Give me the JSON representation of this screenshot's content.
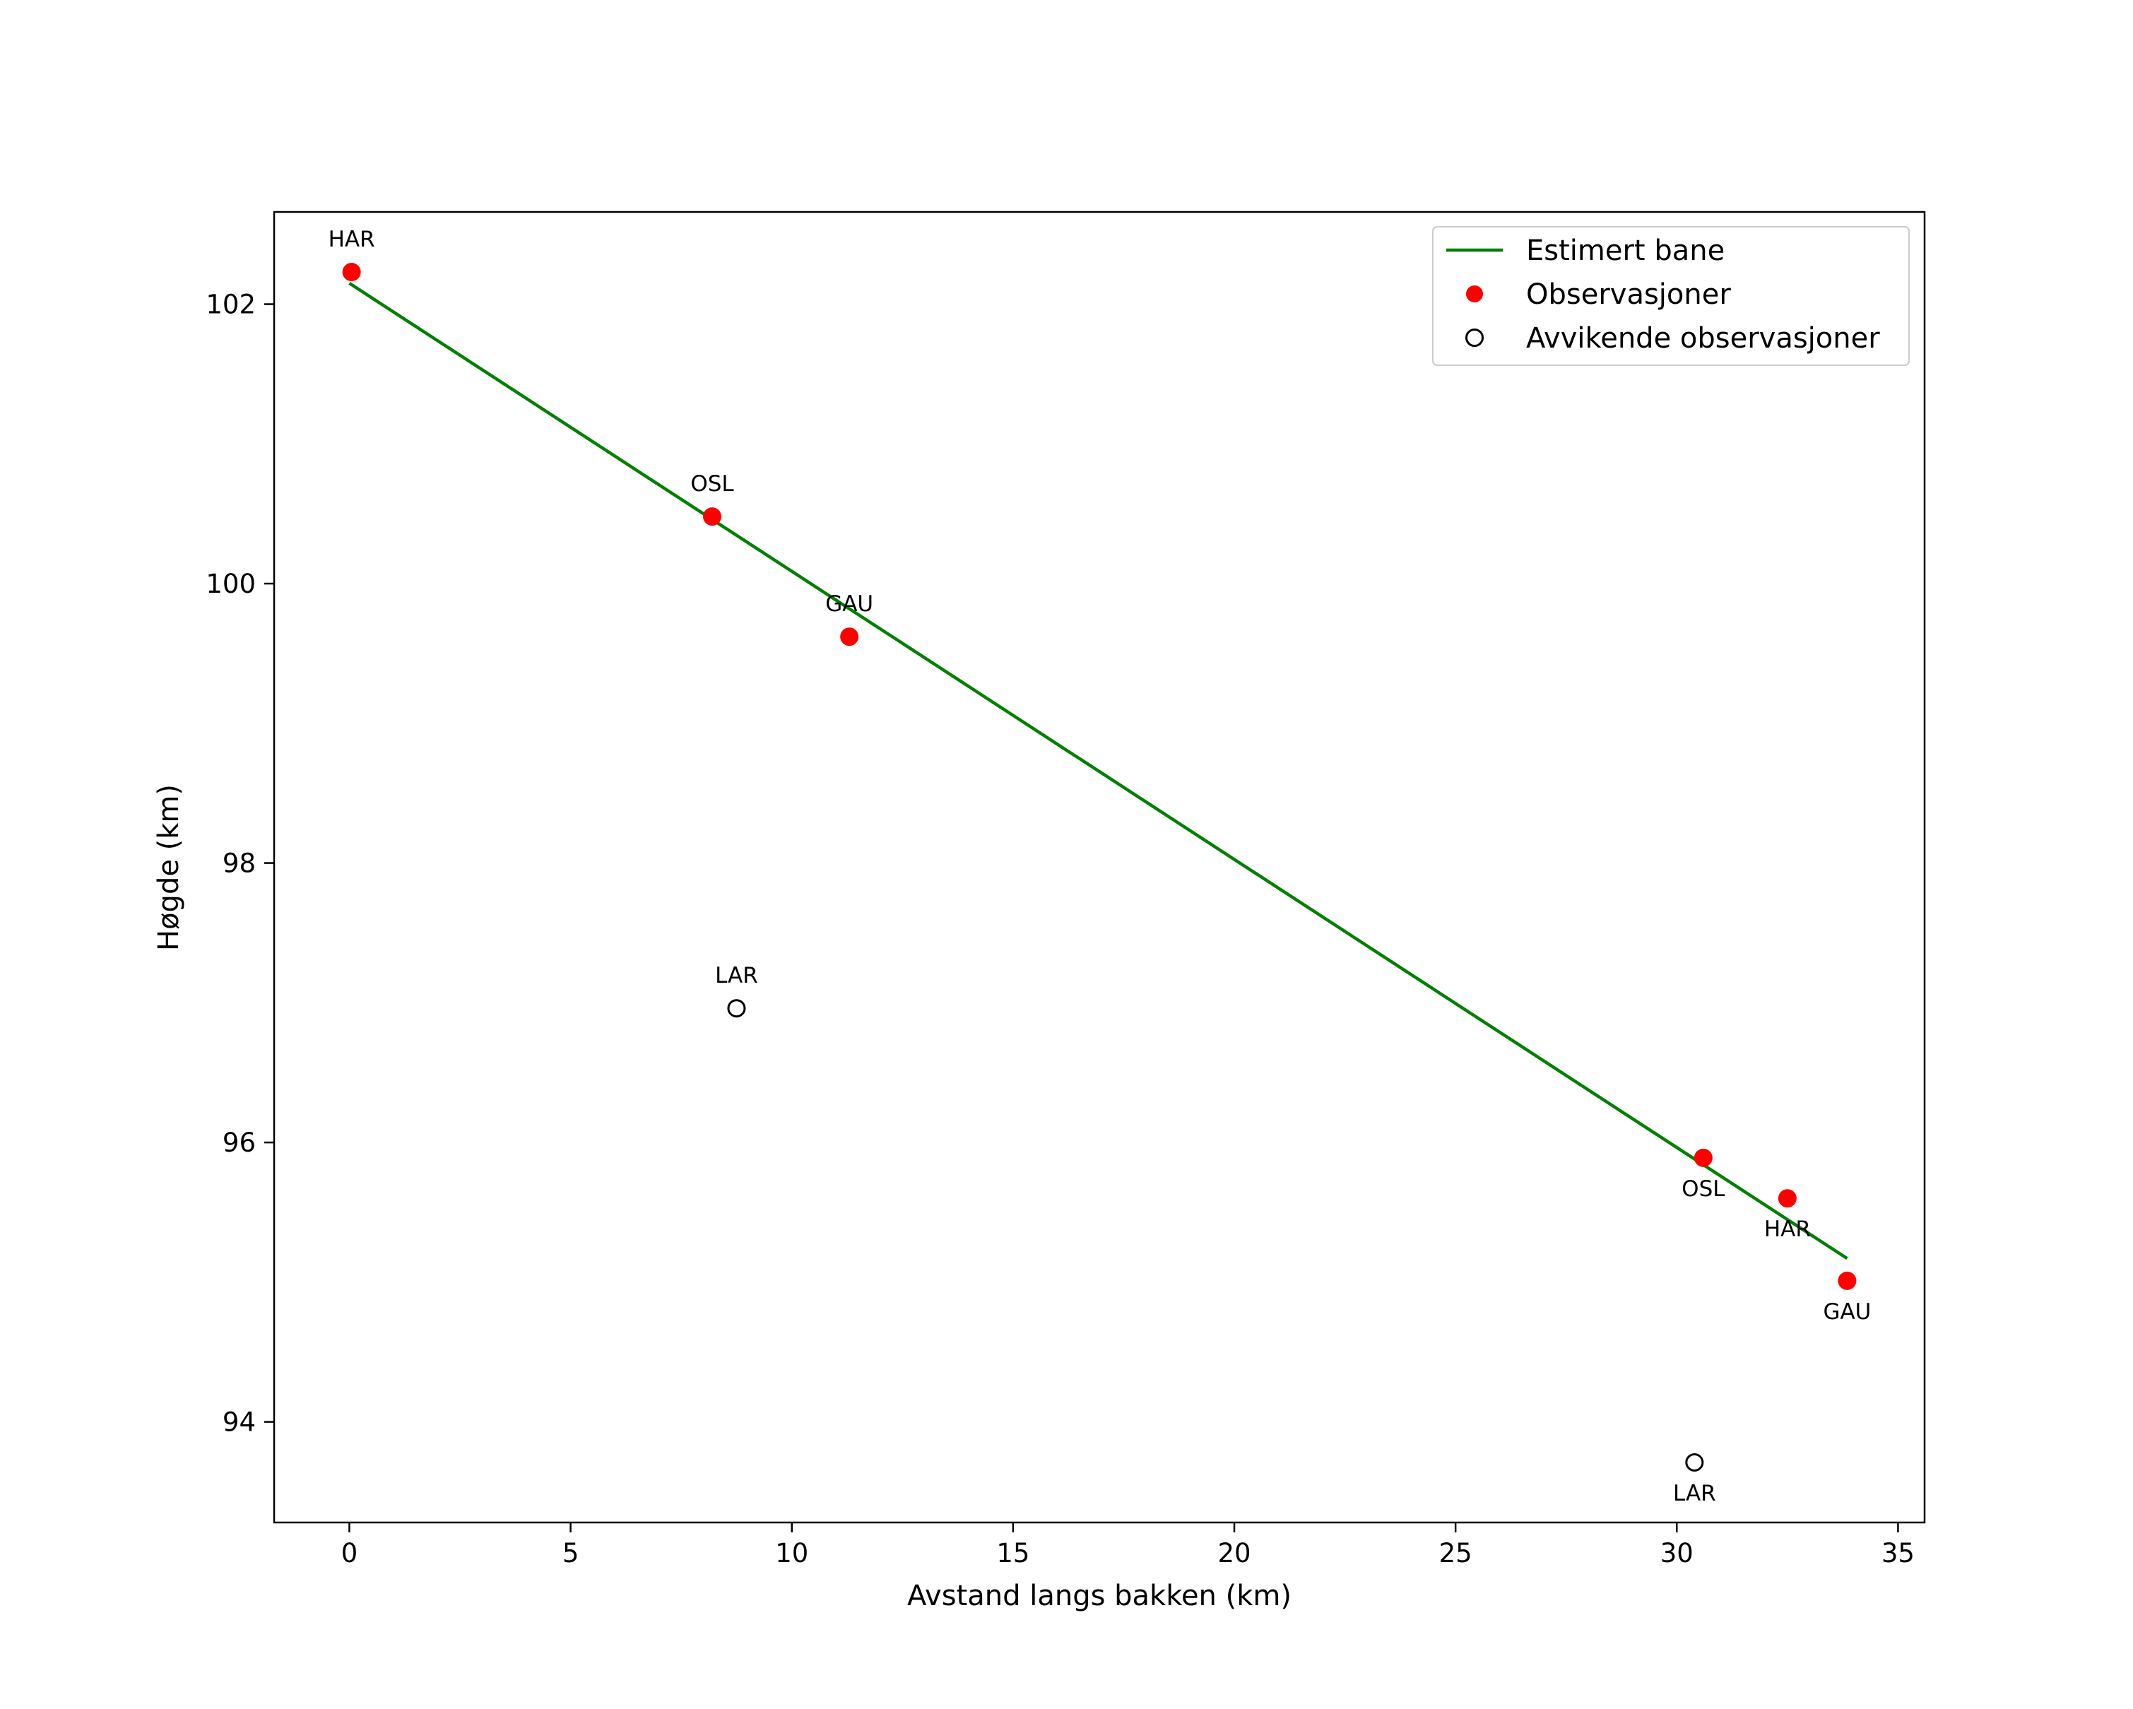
{
  "chart_data": {
    "type": "scatter",
    "title": "",
    "xlabel": "Avstand langs bakken (km)",
    "ylabel": "Høgde (km)",
    "xlim": [
      -1.7,
      35.6
    ],
    "ylim": [
      93.28,
      102.66
    ],
    "xticks": [
      0,
      5,
      10,
      15,
      20,
      25,
      30,
      35
    ],
    "yticks": [
      94,
      96,
      98,
      100,
      102
    ],
    "grid": false,
    "legend_position": "top-right",
    "colors": {
      "line": "#008000",
      "observation": "#ff0000",
      "outlier": "#000000"
    },
    "series": [
      {
        "name": "Estimert bane",
        "kind": "line",
        "points": [
          [
            0.0,
            102.15
          ],
          [
            33.85,
            95.17
          ]
        ]
      },
      {
        "name": "Observasjoner",
        "kind": "points",
        "points": [
          {
            "x": 0.05,
            "y": 102.23,
            "label": "HAR",
            "label_pos": "above"
          },
          {
            "x": 8.2,
            "y": 100.48,
            "label": "OSL",
            "label_pos": "above"
          },
          {
            "x": 11.3,
            "y": 99.62,
            "label": "GAU",
            "label_pos": "above"
          },
          {
            "x": 30.6,
            "y": 95.89,
            "label": "OSL",
            "label_pos": "below"
          },
          {
            "x": 32.5,
            "y": 95.6,
            "label": "HAR",
            "label_pos": "below"
          },
          {
            "x": 33.85,
            "y": 95.01,
            "label": "GAU",
            "label_pos": "below"
          }
        ]
      },
      {
        "name": "Avvikende observasjoner",
        "kind": "hollow-points",
        "points": [
          {
            "x": 8.75,
            "y": 96.96,
            "label": "LAR",
            "label_pos": "above"
          },
          {
            "x": 30.4,
            "y": 93.71,
            "label": "LAR",
            "label_pos": "below"
          }
        ]
      }
    ]
  }
}
